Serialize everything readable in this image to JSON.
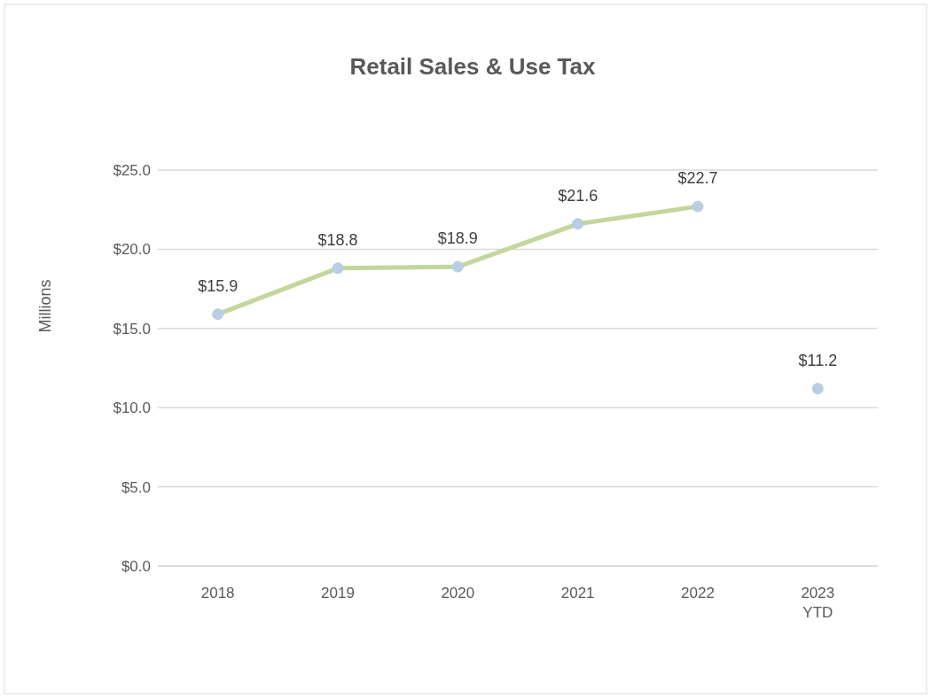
{
  "chart_data": {
    "type": "line",
    "title": "Retail Sales & Use Tax",
    "ylabel": "Millions",
    "categories": [
      "2018",
      "2019",
      "2020",
      "2021",
      "2022",
      "2023\nYTD"
    ],
    "series": [
      {
        "color": "#c3d69b",
        "values": [
          15.9,
          18.8,
          18.9,
          21.6,
          22.7,
          null
        ],
        "value_labels": [
          "$15.9",
          "$18.8",
          "$18.9",
          "$21.6",
          "$22.7",
          null
        ]
      },
      {
        "type": "scatter",
        "color": "#b9cde5",
        "values": [
          null,
          null,
          null,
          null,
          null,
          11.2
        ],
        "value_labels": [
          null,
          null,
          null,
          null,
          null,
          "$11.2"
        ]
      }
    ],
    "ylim": [
      0,
      25
    ],
    "yticks": [
      {
        "value": 0,
        "label": "$0.0"
      },
      {
        "value": 5,
        "label": "$5.0"
      },
      {
        "value": 10,
        "label": "$10.0"
      },
      {
        "value": 15,
        "label": "$15.0"
      },
      {
        "value": 20,
        "label": "$20.0"
      },
      {
        "value": 25,
        "label": "$25.0"
      }
    ],
    "grid": "y",
    "marker": "circle"
  }
}
